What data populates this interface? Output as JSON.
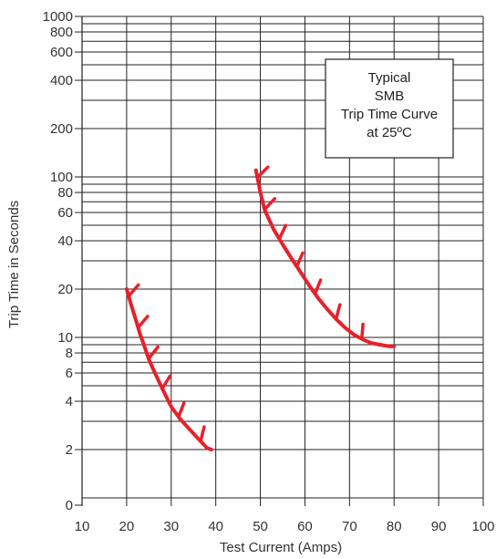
{
  "chart_data": {
    "type": "line",
    "xlabel": "Test Current (Amps)",
    "ylabel": "Trip Time in Seconds",
    "x_ticks": [
      "10",
      "20",
      "30",
      "40",
      "50",
      "60",
      "70",
      "80",
      "90",
      "100"
    ],
    "y_ticks": [
      {
        "value": 0,
        "label": "0"
      },
      {
        "value": 2,
        "label": "2"
      },
      {
        "value": 4,
        "label": "4"
      },
      {
        "value": 6,
        "label": "6"
      },
      {
        "value": 8,
        "label": "8"
      },
      {
        "value": 10,
        "label": "10"
      },
      {
        "value": 20,
        "label": "20"
      },
      {
        "value": 40,
        "label": "40"
      },
      {
        "value": 60,
        "label": "60"
      },
      {
        "value": 80,
        "label": "80"
      },
      {
        "value": 100,
        "label": "100"
      },
      {
        "value": 200,
        "label": "200"
      },
      {
        "value": 400,
        "label": "400"
      },
      {
        "value": 600,
        "label": "600"
      },
      {
        "value": 800,
        "label": "800"
      },
      {
        "value": 1000,
        "label": "1000"
      }
    ],
    "xlim": [
      10,
      100
    ],
    "ylim": [
      0,
      1000
    ],
    "y_scale": "log",
    "grid": true,
    "annotation": {
      "lines": [
        "Typical",
        "SMB",
        "Trip Time Curve",
        "at 25ºC"
      ],
      "position": "top-right"
    },
    "curve_color": "#e8202a",
    "series": [
      {
        "x": [
          20,
          21,
          22,
          23,
          24,
          25,
          26,
          28,
          30,
          32,
          34,
          36,
          38,
          39
        ],
        "y": [
          20,
          16,
          13,
          10.5,
          8.8,
          7.3,
          6.3,
          4.8,
          3.7,
          3.1,
          2.7,
          2.35,
          2.05,
          2.0
        ]
      },
      {
        "x": [
          49,
          50,
          51,
          53,
          55,
          57,
          59,
          61,
          63,
          65,
          67,
          69,
          71,
          73,
          75,
          77,
          79,
          80
        ],
        "y": [
          110,
          80,
          62,
          47,
          38,
          31,
          25.5,
          21,
          17.5,
          15,
          13,
          11.5,
          10.4,
          9.7,
          9.2,
          9.0,
          8.8,
          8.8
        ]
      }
    ]
  }
}
